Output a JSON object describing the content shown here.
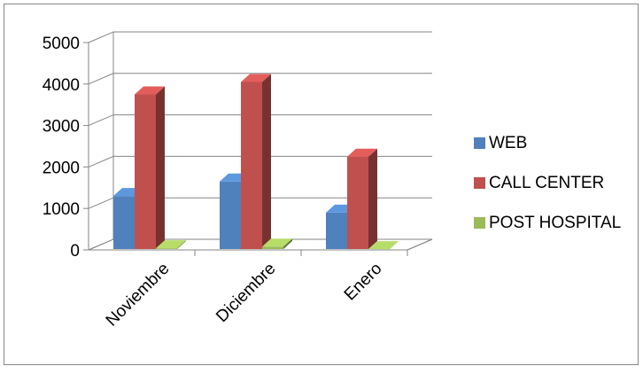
{
  "chart_data": {
    "type": "bar",
    "style": "3d-clustered-column",
    "categories": [
      "Noviembre",
      "Diciembre",
      "Enero"
    ],
    "series": [
      {
        "name": "WEB",
        "values": [
          1300,
          1650,
          900
        ],
        "color": "#4F81BD"
      },
      {
        "name": "CALL CENTER",
        "values": [
          3750,
          4050,
          2250
        ],
        "color": "#C0504D"
      },
      {
        "name": "POST HOSPITAL",
        "values": [
          40,
          80,
          20
        ],
        "color": "#9BBB59"
      }
    ],
    "yticks": [
      "0",
      "1000",
      "2000",
      "3000",
      "4000",
      "5000"
    ],
    "ylim": [
      0,
      5000
    ],
    "grid": true,
    "legend": "right"
  }
}
